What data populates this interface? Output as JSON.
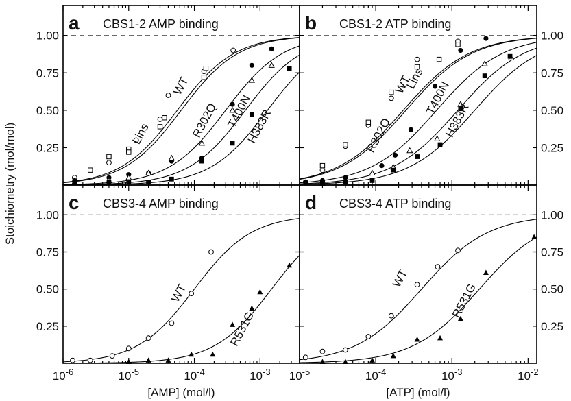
{
  "figure": {
    "ylabel": "Stoichiometry (mol/mol)",
    "reference_line": 1.0,
    "y_ticks": [
      "1.00",
      "0.75",
      "0.50",
      "0.25"
    ],
    "y_tick_values": [
      1.0,
      0.75,
      0.5,
      0.25
    ]
  },
  "chart_data": [
    {
      "type": "scatter",
      "panel": "a",
      "title": "CBS1-2 AMP binding",
      "xlabel": "[AMP] (mol/l)",
      "x_scale": "log",
      "xlim": [
        1e-06,
        0.004
      ],
      "ylim": [
        0,
        1.2
      ],
      "x_tick_labels": [
        {
          "base": "10",
          "exp": "-6",
          "value": 1e-06
        },
        {
          "base": "10",
          "exp": "-5",
          "value": 1e-05
        },
        {
          "base": "10",
          "exp": "-4",
          "value": 0.0001
        },
        {
          "base": "10",
          "exp": "-3",
          "value": 0.001
        }
      ],
      "series": [
        {
          "name": "WT",
          "marker": "open-circle",
          "kd": 5.5e-05,
          "points": [
            [
              1.5e-06,
              0.05
            ],
            [
              5e-06,
              0.15
            ],
            [
              1.3e-05,
              0.3
            ],
            [
              3e-05,
              0.44
            ],
            [
              4e-05,
              0.6
            ],
            [
              0.00014,
              0.76
            ],
            [
              0.00039,
              0.9
            ]
          ]
        },
        {
          "name": "Lins",
          "marker": "open-square",
          "kd": 6.3e-05,
          "points": [
            [
              2.6e-06,
              0.1
            ],
            [
              5e-06,
              0.19
            ],
            [
              1e-05,
              0.24
            ],
            [
              1e-05,
              0.22
            ],
            [
              3e-05,
              0.39
            ],
            [
              3.5e-05,
              0.45
            ],
            [
              0.00014,
              0.72
            ],
            [
              0.00015,
              0.78
            ]
          ]
        },
        {
          "name": "R302Q",
          "marker": "filled-circle",
          "kd": 0.0003,
          "points": [
            [
              1.5e-06,
              0.03
            ],
            [
              5e-06,
              0.05
            ],
            [
              1e-05,
              0.07
            ],
            [
              2e-05,
              0.08
            ],
            [
              4.5e-05,
              0.16
            ],
            [
              0.00013,
              0.18
            ],
            [
              0.00038,
              0.54
            ],
            [
              0.00075,
              0.8
            ],
            [
              0.0015,
              0.91
            ]
          ]
        },
        {
          "name": "T400N",
          "marker": "open-triangle",
          "kd": 0.0006,
          "points": [
            [
              1.5e-06,
              0.02
            ],
            [
              5e-06,
              0.03
            ],
            [
              1e-05,
              0.05
            ],
            [
              2e-05,
              0.08
            ],
            [
              4.5e-05,
              0.18
            ],
            [
              0.00013,
              0.28
            ],
            [
              0.00038,
              0.5
            ],
            [
              0.00075,
              0.7
            ],
            [
              0.0015,
              0.8
            ]
          ]
        },
        {
          "name": "H383R",
          "marker": "filled-square",
          "kd": 0.0013,
          "points": [
            [
              1.5e-06,
              0.02
            ],
            [
              5e-06,
              0.02
            ],
            [
              1e-05,
              0.02
            ],
            [
              2e-05,
              0.02
            ],
            [
              4.5e-05,
              0.04
            ],
            [
              0.00013,
              0.16
            ],
            [
              0.00038,
              0.28
            ],
            [
              0.00075,
              0.47
            ],
            [
              0.0028,
              0.78
            ]
          ]
        }
      ],
      "labels": [
        {
          "text": "WT",
          "x": 7e-05,
          "y": 0.65,
          "angle": -62
        },
        {
          "text": "Lins",
          "x": 1.7e-05,
          "y": 0.33,
          "angle": -62
        },
        {
          "text": "R302Q",
          "x": 0.00016,
          "y": 0.42,
          "angle": -62
        },
        {
          "text": "T400N",
          "x": 0.00054,
          "y": 0.48,
          "angle": -62
        },
        {
          "text": "H383R",
          "x": 0.0011,
          "y": 0.38,
          "angle": -62
        }
      ]
    },
    {
      "type": "scatter",
      "panel": "b",
      "title": "CBS1-2 ATP binding",
      "xlabel": "[ATP] (mol/l)",
      "x_scale": "log",
      "xlim": [
        1e-05,
        0.013
      ],
      "ylim": [
        0,
        1.2
      ],
      "x_tick_labels": [
        {
          "base": "10",
          "exp": "-5",
          "value": 1e-05
        },
        {
          "base": "10",
          "exp": "-4",
          "value": 0.0001
        },
        {
          "base": "10",
          "exp": "-3",
          "value": 0.001
        },
        {
          "base": "10",
          "exp": "-2",
          "value": 0.01
        }
      ],
      "series": [
        {
          "name": "WT",
          "marker": "open-circle",
          "kd": 0.00023,
          "points": [
            [
              1.2e-05,
              0.02
            ],
            [
              2e-05,
              0.1
            ],
            [
              4e-05,
              0.26
            ],
            [
              8e-05,
              0.4
            ],
            [
              0.00016,
              0.58
            ],
            [
              0.00035,
              0.84
            ],
            [
              0.0012,
              0.96
            ]
          ]
        },
        {
          "name": "Lins",
          "marker": "open-square",
          "kd": 0.00025,
          "points": [
            [
              2e-05,
              0.13
            ],
            [
              4e-05,
              0.27
            ],
            [
              8e-05,
              0.42
            ],
            [
              0.00016,
              0.62
            ],
            [
              0.00035,
              0.79
            ],
            [
              0.00068,
              0.84
            ],
            [
              0.0012,
              0.94
            ]
          ]
        },
        {
          "name": "R302Q",
          "marker": "filled-circle",
          "kd": 0.00063,
          "points": [
            [
              1.2e-05,
              0.02
            ],
            [
              2e-05,
              0.03
            ],
            [
              4e-05,
              0.05
            ],
            [
              0.00012,
              0.13
            ],
            [
              0.00018,
              0.2
            ],
            [
              0.00029,
              0.37
            ],
            [
              0.0006,
              0.66
            ],
            [
              0.0013,
              0.9
            ],
            [
              0.0028,
              0.98
            ]
          ]
        },
        {
          "name": "T400N",
          "marker": "open-triangle",
          "kd": 0.0012,
          "points": [
            [
              2e-05,
              0.01
            ],
            [
              4e-05,
              0.02
            ],
            [
              9e-05,
              0.08
            ],
            [
              0.00017,
              0.12
            ],
            [
              0.00028,
              0.23
            ],
            [
              0.00064,
              0.31
            ],
            [
              0.0013,
              0.54
            ],
            [
              0.0027,
              0.81
            ],
            [
              0.006,
              0.85
            ]
          ]
        },
        {
          "name": "H383R",
          "marker": "filled-square",
          "kd": 0.002,
          "points": [
            [
              2e-05,
              0.01
            ],
            [
              4e-05,
              0.02
            ],
            [
              9e-05,
              0.03
            ],
            [
              0.00017,
              0.1
            ],
            [
              0.00035,
              0.19
            ],
            [
              0.0007,
              0.27
            ],
            [
              0.0013,
              0.51
            ],
            [
              0.0027,
              0.73
            ],
            [
              0.0058,
              0.86
            ]
          ]
        }
      ],
      "labels": [
        {
          "text": "WT",
          "x": 0.00025,
          "y": 0.66,
          "angle": -62
        },
        {
          "text": "Lins",
          "x": 0.00036,
          "y": 0.7,
          "angle": -62
        },
        {
          "text": "R302Q",
          "x": 0.00012,
          "y": 0.32,
          "angle": -62
        },
        {
          "text": "T400N",
          "x": 0.00072,
          "y": 0.57,
          "angle": -62
        },
        {
          "text": "H383R",
          "x": 0.0013,
          "y": 0.42,
          "angle": -62
        }
      ]
    },
    {
      "type": "scatter",
      "panel": "c",
      "title": "CBS3-4 AMP binding",
      "xlabel": "[AMP] (mol/l)",
      "x_scale": "log",
      "xlim": [
        1e-06,
        0.004
      ],
      "ylim": [
        0,
        1.2
      ],
      "x_tick_labels": [
        {
          "base": "10",
          "exp": "-6",
          "value": 1e-06
        },
        {
          "base": "10",
          "exp": "-5",
          "value": 1e-05
        },
        {
          "base": "10",
          "exp": "-4",
          "value": 0.0001
        },
        {
          "base": "10",
          "exp": "-3",
          "value": 0.001
        }
      ],
      "series": [
        {
          "name": "WT",
          "marker": "open-circle",
          "kd": 0.0001,
          "points": [
            [
              1.4e-06,
              0.02
            ],
            [
              2.6e-06,
              0.02
            ],
            [
              5.6e-06,
              0.05
            ],
            [
              1e-05,
              0.1
            ],
            [
              2e-05,
              0.17
            ],
            [
              4.5e-05,
              0.27
            ],
            [
              9e-05,
              0.47
            ],
            [
              0.00018,
              0.75
            ]
          ]
        },
        {
          "name": "R531G",
          "marker": "filled-triangle",
          "kd": 0.0015,
          "points": [
            [
              1e-05,
              0.01
            ],
            [
              2e-05,
              0.02
            ],
            [
              4e-05,
              0.02
            ],
            [
              9e-05,
              0.06
            ],
            [
              0.00019,
              0.06
            ],
            [
              0.00038,
              0.26
            ],
            [
              0.00075,
              0.37
            ],
            [
              0.001,
              0.48
            ],
            [
              0.0028,
              0.66
            ]
          ]
        }
      ],
      "labels": [
        {
          "text": "WT",
          "x": 6.5e-05,
          "y": 0.46,
          "angle": -62
        },
        {
          "text": "R531G",
          "x": 0.0006,
          "y": 0.22,
          "angle": -62
        }
      ]
    },
    {
      "type": "scatter",
      "panel": "d",
      "title": "CBS3-4 ATP binding",
      "xlabel": "[ATP] (mol/l)",
      "x_scale": "log",
      "xlim": [
        1e-05,
        0.013
      ],
      "ylim": [
        0,
        1.2
      ],
      "x_tick_labels": [
        {
          "base": "10",
          "exp": "-5",
          "value": 1e-05
        },
        {
          "base": "10",
          "exp": "-4",
          "value": 0.0001
        },
        {
          "base": "10",
          "exp": "-3",
          "value": 0.001
        },
        {
          "base": "10",
          "exp": "-2",
          "value": 0.01
        }
      ],
      "series": [
        {
          "name": "WT",
          "marker": "open-circle",
          "kd": 0.0004,
          "points": [
            [
              1.2e-05,
              0.04
            ],
            [
              2e-05,
              0.08
            ],
            [
              4e-05,
              0.09
            ],
            [
              8e-05,
              0.18
            ],
            [
              0.00016,
              0.32
            ],
            [
              0.00035,
              0.53
            ],
            [
              0.00065,
              0.65
            ],
            [
              0.0012,
              0.76
            ]
          ]
        },
        {
          "name": "R531G",
          "marker": "filled-triangle",
          "kd": 0.0023,
          "points": [
            [
              2e-05,
              0.01
            ],
            [
              4e-05,
              0.01
            ],
            [
              9e-05,
              0.02
            ],
            [
              0.00017,
              0.05
            ],
            [
              0.00035,
              0.16
            ],
            [
              0.0007,
              0.17
            ],
            [
              0.0013,
              0.3
            ],
            [
              0.0028,
              0.61
            ],
            [
              0.012,
              0.85
            ]
          ]
        }
      ],
      "labels": [
        {
          "text": "WT",
          "x": 0.00023,
          "y": 0.56,
          "angle": -62
        },
        {
          "text": "R531G",
          "x": 0.0016,
          "y": 0.41,
          "angle": -62
        }
      ]
    }
  ]
}
